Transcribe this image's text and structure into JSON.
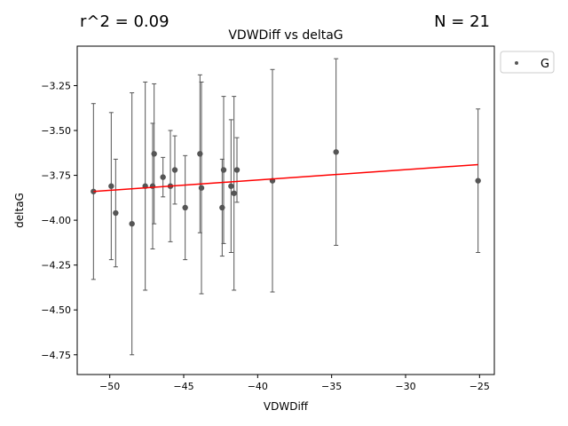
{
  "header": {
    "r2_text": "r^2 = 0.09",
    "n_text": "N = 21"
  },
  "chart_data": {
    "type": "scatter",
    "title": "VDWDiff vs deltaG",
    "xlabel": "VDWDiff",
    "ylabel": "deltaG",
    "xlim": [
      -52.2,
      -24.0
    ],
    "ylim": [
      -4.86,
      -3.03
    ],
    "xticks": [
      -50,
      -45,
      -40,
      -35,
      -30,
      -25
    ],
    "xtick_labels": [
      "−50",
      "−45",
      "−40",
      "−35",
      "−30",
      "−25"
    ],
    "yticks": [
      -4.75,
      -4.5,
      -4.25,
      -4.0,
      -3.75,
      -3.5,
      -3.25
    ],
    "ytick_labels": [
      "−4.75",
      "−4.50",
      "−4.25",
      "−4.00",
      "−3.75",
      "−3.50",
      "−3.25"
    ],
    "grid": false,
    "legend": {
      "position": "outside-top-right",
      "entries": [
        "G"
      ]
    },
    "colors": {
      "points": "#555555",
      "fit_line": "#ff0000"
    },
    "series": [
      {
        "name": "G",
        "points": [
          {
            "x": -51.1,
            "y": -3.84,
            "err": 0.49
          },
          {
            "x": -49.9,
            "y": -3.81,
            "err": 0.41
          },
          {
            "x": -49.6,
            "y": -3.96,
            "err": 0.3
          },
          {
            "x": -48.5,
            "y": -4.02,
            "err": 0.73
          },
          {
            "x": -47.6,
            "y": -3.81,
            "err": 0.58
          },
          {
            "x": -47.1,
            "y": -3.81,
            "err": 0.35
          },
          {
            "x": -47.0,
            "y": -3.63,
            "err": 0.39
          },
          {
            "x": -46.4,
            "y": -3.76,
            "err": 0.11
          },
          {
            "x": -45.9,
            "y": -3.81,
            "err": 0.31
          },
          {
            "x": -45.6,
            "y": -3.72,
            "err": 0.19
          },
          {
            "x": -44.9,
            "y": -3.93,
            "err": 0.29
          },
          {
            "x": -43.9,
            "y": -3.63,
            "err": 0.44
          },
          {
            "x": -43.8,
            "y": -3.82,
            "err": 0.59
          },
          {
            "x": -42.4,
            "y": -3.93,
            "err": 0.27
          },
          {
            "x": -42.3,
            "y": -3.72,
            "err": 0.41
          },
          {
            "x": -41.8,
            "y": -3.81,
            "err": 0.37
          },
          {
            "x": -41.6,
            "y": -3.85,
            "err": 0.54
          },
          {
            "x": -41.4,
            "y": -3.72,
            "err": 0.18
          },
          {
            "x": -39.0,
            "y": -3.78,
            "err": 0.62
          },
          {
            "x": -34.7,
            "y": -3.62,
            "err": 0.52
          },
          {
            "x": -25.1,
            "y": -3.78,
            "err": 0.4
          }
        ]
      }
    ],
    "fit_line": {
      "x": [
        -51.1,
        -25.1
      ],
      "y": [
        -3.84,
        -3.69
      ]
    }
  }
}
